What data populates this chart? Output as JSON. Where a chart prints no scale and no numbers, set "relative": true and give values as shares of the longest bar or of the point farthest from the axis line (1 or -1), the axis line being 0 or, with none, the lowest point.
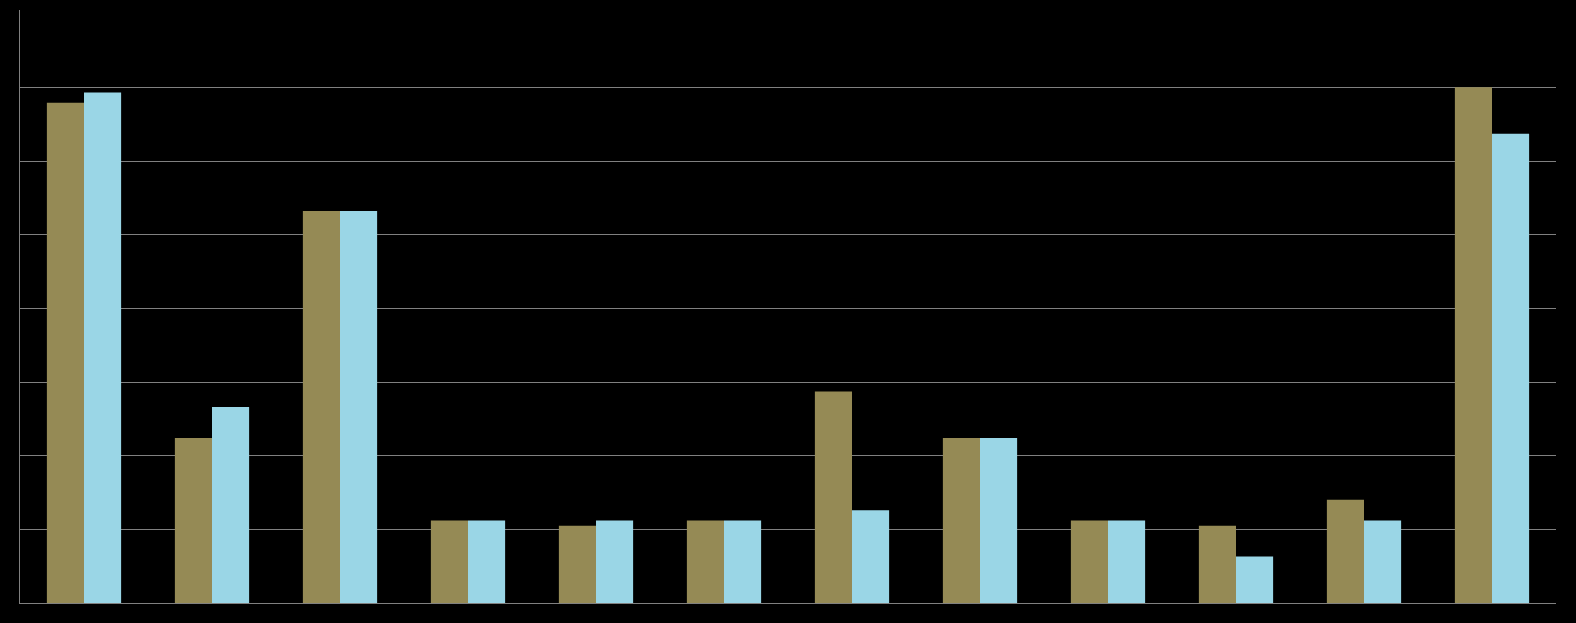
{
  "chart_data": {
    "type": "bar",
    "relative": true,
    "grid": "y",
    "categories": [
      null,
      null,
      null,
      null,
      null,
      null,
      null,
      null,
      null,
      null,
      null,
      null
    ],
    "series": [
      {
        "color": "#958a55",
        "values": [
          0.97,
          0.32,
          0.76,
          0.16,
          0.15,
          0.16,
          0.41,
          0.32,
          0.16,
          0.15,
          0.2,
          1
        ]
      },
      {
        "color": "#9ad6e6",
        "values": [
          0.99,
          0.38,
          0.76,
          0.16,
          0.16,
          0.16,
          0.18,
          0.32,
          0.16,
          0.09,
          0.16,
          0.91
        ]
      }
    ]
  }
}
